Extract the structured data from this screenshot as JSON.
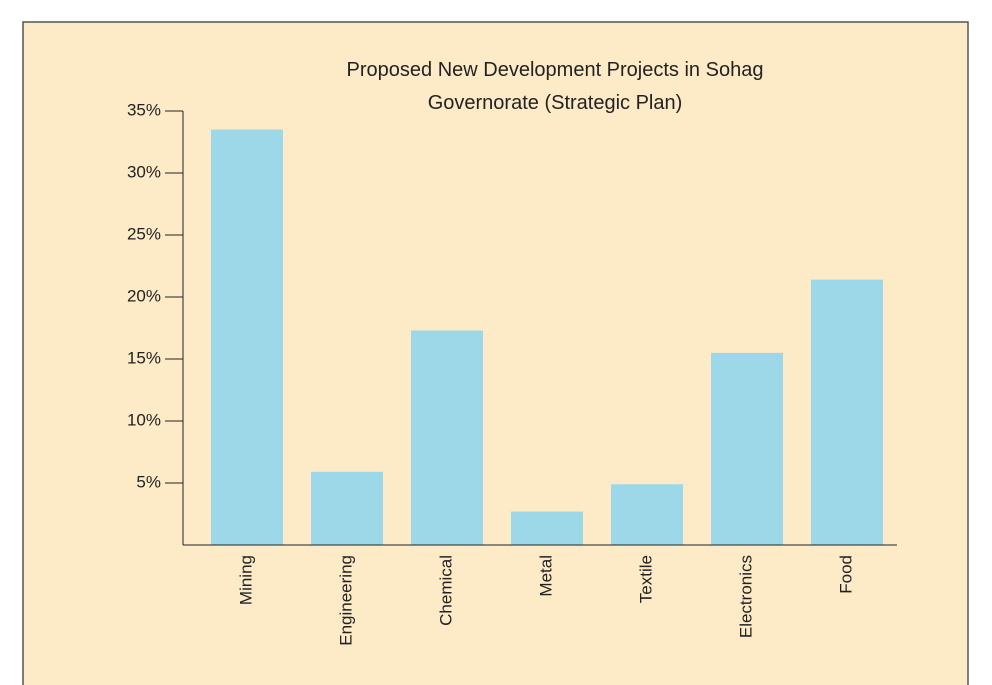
{
  "chart_data": {
    "type": "bar",
    "title": "Proposed New Development Projects in Sohag Governorate (Strategic Plan)",
    "categories": [
      "Mining",
      "Engineering",
      "Chemical",
      "Metal",
      "Textile",
      "Electronics",
      "Food"
    ],
    "values": [
      33.5,
      5.9,
      17.3,
      2.7,
      4.9,
      15.5,
      21.4
    ],
    "color": "#9cd8e8",
    "ylim": [
      0,
      35
    ],
    "yticks": [
      {
        "value": 5,
        "label": "5%"
      },
      {
        "value": 10,
        "label": "10%"
      },
      {
        "value": 15,
        "label": "15%"
      },
      {
        "value": 20,
        "label": "20%"
      },
      {
        "value": 25,
        "label": "25%"
      },
      {
        "value": 30,
        "label": "30%"
      },
      {
        "value": 35,
        "label": "35%"
      }
    ],
    "grid": false
  }
}
